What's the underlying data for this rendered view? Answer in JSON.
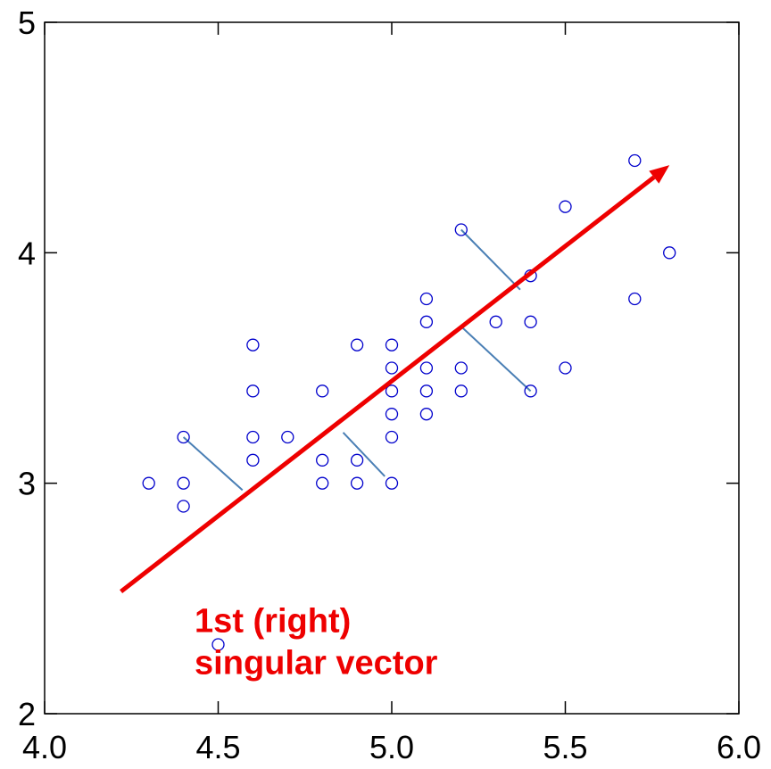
{
  "chart_data": {
    "type": "scatter",
    "title": "",
    "xlabel": "",
    "ylabel": "",
    "xlim": [
      4.0,
      6.0
    ],
    "ylim": [
      2,
      5
    ],
    "grid": false,
    "x_ticks": [
      4.0,
      4.5,
      5.0,
      5.5,
      6.0
    ],
    "x_tick_labels": [
      "4.0",
      "4.5",
      "5.0",
      "5.5",
      "6.0"
    ],
    "y_ticks": [
      2,
      3,
      4,
      5
    ],
    "y_tick_labels": [
      "2",
      "3",
      "4",
      "5"
    ],
    "colors": {
      "points": "#0000cc",
      "vector": "#ee0000",
      "residuals": "#4a7fb5",
      "annotation": "#ee0000",
      "axes": "#000000"
    },
    "points": [
      {
        "x": 4.3,
        "y": 3.0
      },
      {
        "x": 4.4,
        "y": 2.9
      },
      {
        "x": 4.4,
        "y": 3.0
      },
      {
        "x": 4.4,
        "y": 3.2
      },
      {
        "x": 4.5,
        "y": 2.3
      },
      {
        "x": 4.6,
        "y": 3.1
      },
      {
        "x": 4.6,
        "y": 3.2
      },
      {
        "x": 4.6,
        "y": 3.4
      },
      {
        "x": 4.6,
        "y": 3.6
      },
      {
        "x": 4.7,
        "y": 3.2
      },
      {
        "x": 4.8,
        "y": 3.0
      },
      {
        "x": 4.8,
        "y": 3.1
      },
      {
        "x": 4.8,
        "y": 3.4
      },
      {
        "x": 4.9,
        "y": 3.0
      },
      {
        "x": 4.9,
        "y": 3.1
      },
      {
        "x": 4.9,
        "y": 3.6
      },
      {
        "x": 5.0,
        "y": 3.0
      },
      {
        "x": 5.0,
        "y": 3.2
      },
      {
        "x": 5.0,
        "y": 3.3
      },
      {
        "x": 5.0,
        "y": 3.4
      },
      {
        "x": 5.0,
        "y": 3.5
      },
      {
        "x": 5.0,
        "y": 3.6
      },
      {
        "x": 5.1,
        "y": 3.3
      },
      {
        "x": 5.1,
        "y": 3.4
      },
      {
        "x": 5.1,
        "y": 3.5
      },
      {
        "x": 5.1,
        "y": 3.7
      },
      {
        "x": 5.1,
        "y": 3.8
      },
      {
        "x": 5.2,
        "y": 3.4
      },
      {
        "x": 5.2,
        "y": 3.5
      },
      {
        "x": 5.2,
        "y": 4.1
      },
      {
        "x": 5.3,
        "y": 3.7
      },
      {
        "x": 5.4,
        "y": 3.4
      },
      {
        "x": 5.4,
        "y": 3.7
      },
      {
        "x": 5.4,
        "y": 3.9
      },
      {
        "x": 5.5,
        "y": 3.5
      },
      {
        "x": 5.5,
        "y": 4.2
      },
      {
        "x": 5.7,
        "y": 3.8
      },
      {
        "x": 5.7,
        "y": 4.4
      },
      {
        "x": 5.8,
        "y": 4.0
      }
    ],
    "vector": {
      "from": [
        4.22,
        2.53
      ],
      "to": [
        5.8,
        4.38
      ]
    },
    "residuals": [
      {
        "from": [
          4.4,
          3.2
        ],
        "to": [
          4.57,
          2.97
        ]
      },
      {
        "from": [
          4.86,
          3.22
        ],
        "to": [
          4.98,
          3.03
        ]
      },
      {
        "from": [
          5.2,
          4.1
        ],
        "to": [
          5.37,
          3.84
        ]
      },
      {
        "from": [
          5.2,
          3.68
        ],
        "to": [
          5.4,
          3.4
        ]
      }
    ],
    "annotation": {
      "lines": [
        "1st (right)",
        "singular vector"
      ],
      "x": 4.45,
      "y": 2.4
    }
  }
}
